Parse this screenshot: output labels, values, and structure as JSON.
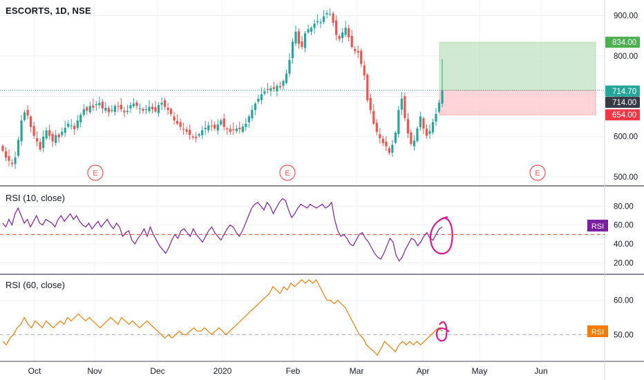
{
  "chart_data": [
    {
      "type": "candlestick",
      "title": "ESCORTS, 1D, NSE",
      "x_ticks": [
        "Oct",
        "Nov",
        "Dec",
        "2020",
        "Feb",
        "Mar",
        "Apr",
        "May",
        "Jun"
      ],
      "y_ticks": [
        "500.00",
        "600.00",
        "700.00",
        "800.00",
        "900.00"
      ],
      "ylim": [
        490,
        918
      ],
      "colors": {
        "up": "#26a69a",
        "down": "#ef5350",
        "profit_zone": "#c8e6c9",
        "loss_zone": "#ffcdd2"
      },
      "closes": [
        565,
        548,
        540,
        532,
        548,
        592,
        640,
        660,
        652,
        624,
        602,
        588,
        568,
        600,
        616,
        602,
        588,
        604,
        598,
        612,
        622,
        632,
        628,
        618,
        640,
        654,
        668,
        664,
        676,
        672,
        680,
        684,
        670,
        672,
        660,
        666,
        676,
        674,
        668,
        660,
        664,
        678,
        682,
        676,
        670,
        664,
        668,
        674,
        668,
        662,
        678,
        684,
        674,
        666,
        656,
        640,
        632,
        624,
        618,
        612,
        604,
        598,
        596,
        606,
        616,
        622,
        628,
        626,
        620,
        630,
        640,
        624,
        618,
        612,
        616,
        620,
        618,
        625,
        632,
        650,
        666,
        682,
        694,
        705,
        712,
        716,
        720,
        718,
        726,
        722,
        738,
        756,
        790,
        835,
        860,
        830,
        822,
        856,
        866,
        870,
        880,
        886,
        884,
        898,
        906,
        904,
        882,
        852,
        842,
        858,
        870,
        846,
        822,
        812,
        808,
        780,
        752,
        690,
        666,
        632,
        612,
        596,
        584,
        576,
        560,
        580,
        610,
        666,
        694,
        646,
        608,
        582,
        590,
        620,
        650,
        620,
        602,
        614,
        636,
        656,
        684,
        714
      ],
      "markers": [
        {
          "label": "E"
        },
        {
          "label": "E"
        },
        {
          "label": "E"
        }
      ],
      "price_levels": [
        {
          "label": "834.00",
          "value": 834,
          "color": "#4caf50"
        },
        {
          "label": "714.70",
          "value": 714.7,
          "color": "#26a69a"
        },
        {
          "label": "714.00",
          "value": 714,
          "color": "#363a45"
        },
        {
          "label": "654.00",
          "value": 654,
          "color": "#f23645"
        }
      ]
    },
    {
      "type": "line",
      "title": "RSI (10, close)",
      "y_ticks": [
        "20.00",
        "40.00",
        "60.00",
        "80.00"
      ],
      "ylim": [
        13,
        92
      ],
      "reference_line": 50,
      "color": "#7b1fa2",
      "badge": "RSI",
      "values": [
        62,
        58,
        66,
        60,
        72,
        78,
        70,
        62,
        66,
        58,
        64,
        70,
        62,
        60,
        66,
        64,
        62,
        58,
        66,
        70,
        64,
        68,
        72,
        66,
        70,
        64,
        60,
        58,
        62,
        56,
        60,
        64,
        58,
        62,
        66,
        60,
        56,
        62,
        58,
        48,
        52,
        54,
        44,
        40,
        46,
        50,
        56,
        48,
        58,
        50,
        44,
        38,
        34,
        30,
        36,
        44,
        50,
        46,
        54,
        56,
        52,
        48,
        56,
        50,
        46,
        42,
        48,
        54,
        58,
        52,
        48,
        44,
        50,
        56,
        60,
        58,
        52,
        48,
        54,
        62,
        70,
        78,
        82,
        84,
        80,
        76,
        84,
        80,
        72,
        78,
        84,
        88,
        86,
        76,
        68,
        72,
        78,
        82,
        80,
        78,
        82,
        80,
        78,
        80,
        82,
        78,
        80,
        84,
        66,
        54,
        48,
        50,
        46,
        40,
        38,
        44,
        50,
        52,
        46,
        42,
        36,
        30,
        26,
        24,
        30,
        38,
        46,
        42,
        28,
        22,
        26,
        34,
        40,
        46,
        44,
        38,
        42,
        48,
        52,
        46,
        44,
        50,
        56,
        58
      ]
    },
    {
      "type": "line",
      "title": "RSI (60, close)",
      "y_ticks": [
        "50.00",
        "60.00"
      ],
      "ylim": [
        43,
        67
      ],
      "reference_line": 50,
      "color": "#f57c00",
      "badge": "RSI",
      "values": [
        48,
        47,
        49,
        50,
        52,
        53,
        55,
        53,
        52,
        54,
        53,
        52,
        54,
        53,
        52,
        53,
        54,
        53,
        55,
        54,
        55,
        56,
        55,
        54,
        55,
        54,
        53,
        52,
        53,
        54,
        55,
        54,
        53,
        55,
        54,
        53,
        54,
        53,
        52,
        53,
        54,
        53,
        52,
        51,
        50,
        49,
        50,
        49,
        50,
        51,
        50,
        50,
        51,
        52,
        51,
        51,
        52,
        51,
        50,
        51,
        52,
        51,
        50,
        51,
        52,
        53,
        54,
        55,
        56,
        57,
        58,
        59,
        60,
        61,
        62,
        64,
        63,
        62,
        64,
        63,
        65,
        64,
        65,
        66,
        65,
        66,
        65,
        66,
        64,
        62,
        60,
        60,
        59,
        60,
        59,
        58,
        56,
        54,
        52,
        50,
        49,
        47,
        46,
        45,
        44,
        46,
        48,
        47,
        46,
        45,
        47,
        48,
        47,
        48,
        47,
        48,
        47,
        48,
        49,
        50,
        51,
        52,
        51
      ]
    }
  ]
}
